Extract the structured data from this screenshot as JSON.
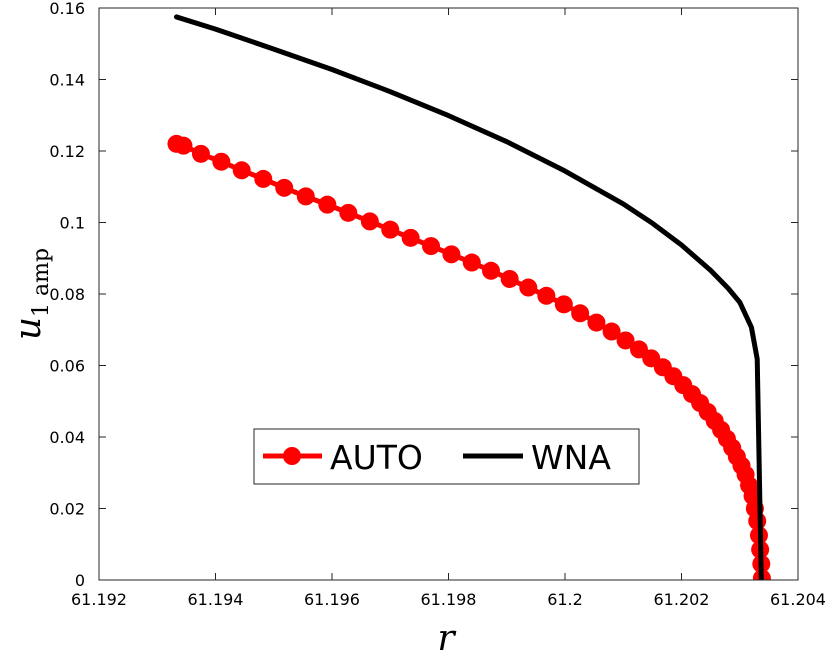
{
  "chart_data": {
    "type": "line",
    "xlabel": "r",
    "ylabel": "u",
    "ylabel_subscript": "1 amp",
    "xlim": [
      61.192,
      61.204
    ],
    "ylim": [
      0,
      0.16
    ],
    "xticks": [
      "61.192",
      "61.194",
      "61.196",
      "61.198",
      "61.2",
      "61.202",
      "61.204"
    ],
    "yticks": [
      "0",
      "0.02",
      "0.04",
      "0.06",
      "0.08",
      "0.1",
      "0.12",
      "0.14",
      "0.16"
    ],
    "grid": false,
    "legend": {
      "position": "center-bottom",
      "orientation": "horizontal"
    },
    "series": [
      {
        "name": "AUTO",
        "color": "#ff0000",
        "marker": "circle",
        "x": [
          61.19333,
          61.19345,
          61.19375,
          61.1941,
          61.19445,
          61.19482,
          61.19518,
          61.19555,
          61.19592,
          61.19628,
          61.19665,
          61.197,
          61.19735,
          61.1977,
          61.19805,
          61.1984,
          61.19873,
          61.19905,
          61.19937,
          61.19968,
          61.19998,
          61.20026,
          61.20054,
          61.2008,
          61.20104,
          61.20127,
          61.20148,
          61.20168,
          61.20186,
          61.20203,
          61.20218,
          61.20232,
          61.20245,
          61.20257,
          61.20268,
          61.20278,
          61.20287,
          61.20295,
          61.20303,
          61.2031,
          61.20316,
          61.20322,
          61.20326,
          61.2033,
          61.20333,
          61.20335,
          61.20337,
          61.20338
        ],
        "y": [
          0.122,
          0.1215,
          0.1192,
          0.117,
          0.1146,
          0.1122,
          0.1097,
          0.1073,
          0.105,
          0.1027,
          0.1003,
          0.098,
          0.0957,
          0.0934,
          0.0911,
          0.0888,
          0.0865,
          0.0842,
          0.0818,
          0.0795,
          0.0771,
          0.0746,
          0.072,
          0.0695,
          0.067,
          0.0645,
          0.062,
          0.0595,
          0.057,
          0.0545,
          0.052,
          0.0495,
          0.047,
          0.0445,
          0.042,
          0.0395,
          0.037,
          0.0345,
          0.032,
          0.0295,
          0.0265,
          0.0235,
          0.02,
          0.0165,
          0.0125,
          0.0085,
          0.0045,
          0.0005
        ]
      },
      {
        "name": "WNA",
        "color": "#000000",
        "marker": "none",
        "x": [
          61.19333,
          61.194,
          61.195,
          61.196,
          61.197,
          61.198,
          61.199,
          61.2,
          61.201,
          61.2015,
          61.202,
          61.2025,
          61.2028,
          61.203,
          61.2032,
          61.2033,
          61.20337
        ],
        "y": [
          0.1575,
          0.1541,
          0.1485,
          0.1428,
          0.1366,
          0.1299,
          0.1226,
          0.1144,
          0.1052,
          0.0998,
          0.0937,
          0.0866,
          0.0816,
          0.0777,
          0.0707,
          0.0618,
          0.0
        ]
      }
    ]
  }
}
